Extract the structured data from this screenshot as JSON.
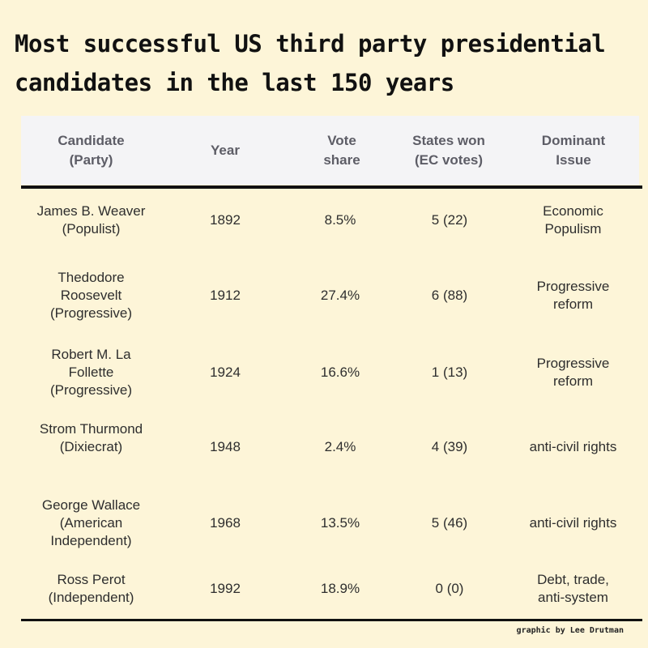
{
  "title": "Most successful US third party presidential candidates in the last 150 years",
  "headers": [
    "Candidate\n(Party)",
    "Year",
    "Vote\nshare",
    "States won\n(EC votes)",
    "Dominant\nIssue"
  ],
  "rows": [
    {
      "candidate": "James B. Weaver\n(Populist)",
      "year": "1892",
      "vote_share": "8.5%",
      "states": "5 (22)",
      "issue": "Economic\nPopulism"
    },
    {
      "candidate": "Thedodore\nRoosevelt\n(Progressive)",
      "year": "1912",
      "vote_share": "27.4%",
      "states": "6 (88)",
      "issue": "Progressive\nreform"
    },
    {
      "candidate": "Robert M. La\nFollette\n(Progressive)",
      "year": "1924",
      "vote_share": "16.6%",
      "states": "1 (13)",
      "issue": "Progressive\nreform"
    },
    {
      "candidate": "Strom Thurmond\n(Dixiecrat)",
      "year": "1948",
      "vote_share": "2.4%",
      "states": "4 (39)",
      "issue": "anti-civil rights"
    },
    {
      "candidate": "George Wallace\n(American\nIndependent)",
      "year": "1968",
      "vote_share": "13.5%",
      "states": "5 (46)",
      "issue": "anti-civil rights"
    },
    {
      "candidate": "Ross Perot\n(Independent)",
      "year": "1992",
      "vote_share": "18.9%",
      "states": "0 (0)",
      "issue": "Debt, trade,\nanti-system"
    }
  ],
  "credit": "graphic by Lee Drutman"
}
